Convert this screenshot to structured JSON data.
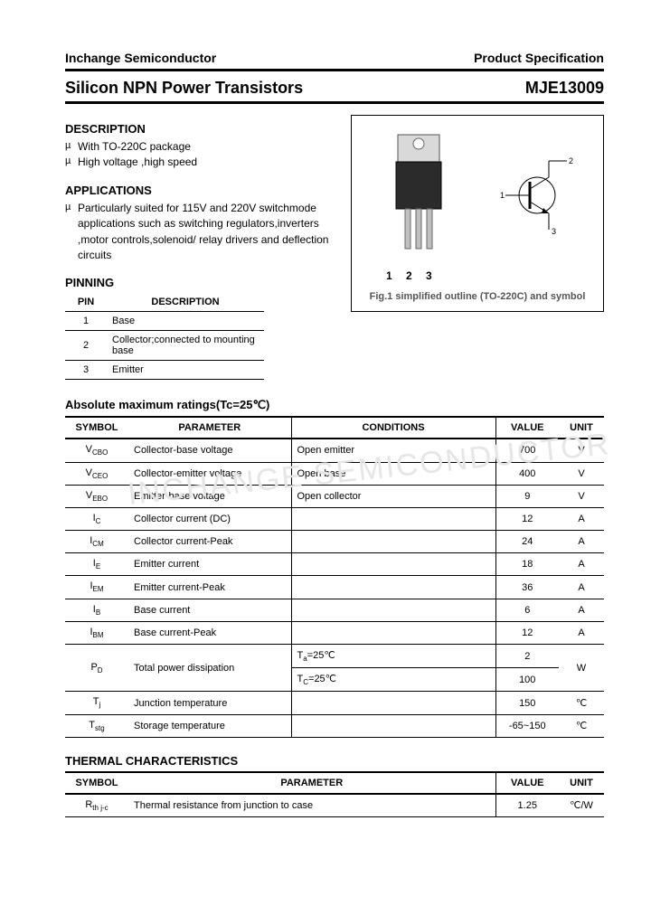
{
  "header": {
    "company": "Inchange Semiconductor",
    "docType": "Product Specification",
    "title": "Silicon NPN Power Transistors",
    "partNumber": "MJE13009"
  },
  "description": {
    "heading": "DESCRIPTION",
    "items": [
      "With TO-220C package",
      "High voltage ,high speed"
    ]
  },
  "applications": {
    "heading": "APPLICATIONS",
    "items": [
      "Particularly suited for 115V and 220V switchmode applications such as switching regulators,inverters ,motor controls,solenoid/ relay drivers and deflection circuits"
    ]
  },
  "figure": {
    "pinLabels": "1  2  3",
    "caption": "Fig.1 simplified outline (TO-220C) and symbol",
    "symbolPins": {
      "p1": "1",
      "p2": "2",
      "p3": "3"
    }
  },
  "pinning": {
    "heading": "PINNING",
    "columns": [
      "PIN",
      "DESCRIPTION"
    ],
    "rows": [
      {
        "pin": "1",
        "desc": "Base"
      },
      {
        "pin": "2",
        "desc": "Collector;connected to mounting base"
      },
      {
        "pin": "3",
        "desc": "Emitter"
      }
    ]
  },
  "ratings": {
    "heading": "Absolute maximum ratings(Tc=25℃)",
    "columns": [
      "SYMBOL",
      "PARAMETER",
      "CONDITIONS",
      "VALUE",
      "UNIT"
    ],
    "rows": [
      {
        "sym": "V_CBO",
        "param": "Collector-base voltage",
        "cond": "Open emitter",
        "val": "700",
        "unit": "V"
      },
      {
        "sym": "V_CEO",
        "param": "Collector-emitter voltage",
        "cond": "Open base",
        "val": "400",
        "unit": "V"
      },
      {
        "sym": "V_EBO",
        "param": "Emitter-base voltage",
        "cond": "Open collector",
        "val": "9",
        "unit": "V"
      },
      {
        "sym": "I_C",
        "param": "Collector current (DC)",
        "cond": "",
        "val": "12",
        "unit": "A"
      },
      {
        "sym": "I_CM",
        "param": "Collector current-Peak",
        "cond": "",
        "val": "24",
        "unit": "A"
      },
      {
        "sym": "I_E",
        "param": "Emitter current",
        "cond": "",
        "val": "18",
        "unit": "A"
      },
      {
        "sym": "I_EM",
        "param": "Emitter current-Peak",
        "cond": "",
        "val": "36",
        "unit": "A"
      },
      {
        "sym": "I_B",
        "param": "Base current",
        "cond": "",
        "val": "6",
        "unit": "A"
      },
      {
        "sym": "I_BM",
        "param": "Base current-Peak",
        "cond": "",
        "val": "12",
        "unit": "A"
      }
    ],
    "powerRow": {
      "sym": "P_D",
      "param": "Total power dissipation",
      "cond1": "T_a=25℃",
      "val1": "2",
      "cond2": "T_C=25℃",
      "val2": "100",
      "unit": "W"
    },
    "tailRows": [
      {
        "sym": "T_j",
        "param": "Junction temperature",
        "cond": "",
        "val": "150",
        "unit": "℃"
      },
      {
        "sym": "T_stg",
        "param": "Storage temperature",
        "cond": "",
        "val": "-65~150",
        "unit": "℃"
      }
    ]
  },
  "thermal": {
    "heading": "THERMAL CHARACTERISTICS",
    "columns": [
      "SYMBOL",
      "PARAMETER",
      "VALUE",
      "UNIT"
    ],
    "rows": [
      {
        "sym": "R_th j-c",
        "param": "Thermal resistance from junction to case",
        "val": "1.25",
        "unit": "℃/W"
      }
    ]
  },
  "watermark": "INCHANGE SEMICONDUCTOR",
  "style": {
    "pageWidth": 720,
    "pageHeight": 1012,
    "textColor": "#000000",
    "bg": "#ffffff",
    "ruleColor": "#000000",
    "watermarkColor": "#e6e6e6",
    "fontSizes": {
      "body": 12,
      "title": 18,
      "header": 14,
      "section": 13,
      "table": 11,
      "caption": 11
    },
    "tableBorder": "#000000"
  }
}
